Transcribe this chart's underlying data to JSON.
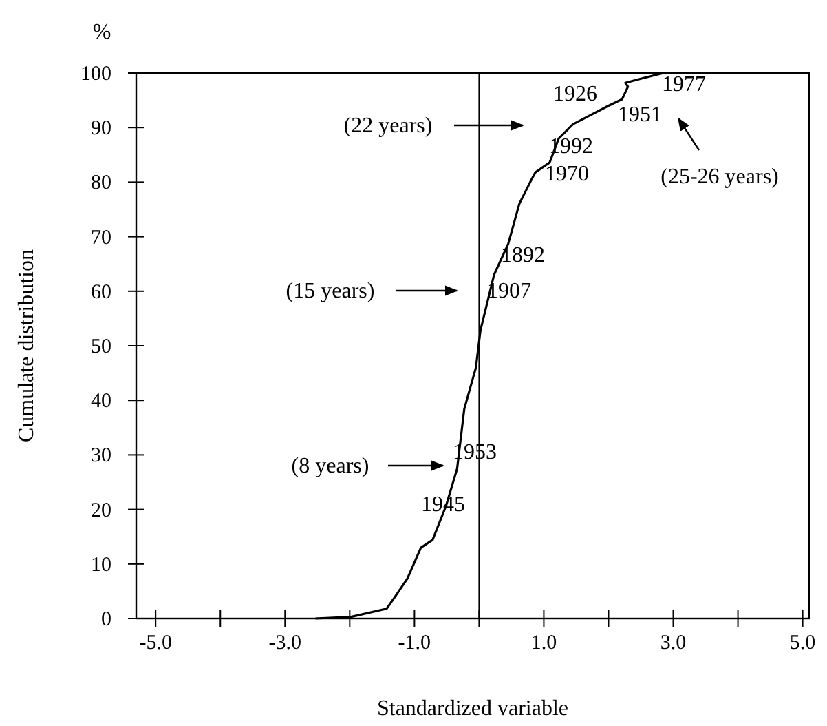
{
  "chart_data": {
    "type": "line",
    "xlabel": "Standardized variable",
    "ylabel": "Cumulate distribution",
    "xlim": [
      -5.3,
      5.1
    ],
    "xticks": [
      {
        "value": -5,
        "label": "-5.0"
      },
      {
        "value": -4,
        "label": null
      },
      {
        "value": -3,
        "label": "-3.0"
      },
      {
        "value": -2,
        "label": null
      },
      {
        "value": -1,
        "label": "-1.0"
      },
      {
        "value": 0,
        "label": null
      },
      {
        "value": 1,
        "label": "1.0"
      },
      {
        "value": 2,
        "label": null
      },
      {
        "value": 3,
        "label": "3.0"
      },
      {
        "value": 4,
        "label": null
      },
      {
        "value": 5,
        "label": "5.0"
      }
    ],
    "ylim": [
      0,
      100
    ],
    "yticks": [
      0,
      10,
      20,
      30,
      40,
      50,
      60,
      70,
      80,
      90,
      100
    ],
    "grid": false,
    "marker": "none",
    "line_style": "solid",
    "ref_lines": [
      {
        "axis": "x",
        "value": 0,
        "color": "#000000"
      }
    ],
    "series": [
      {
        "color": "#000000",
        "x": [
          -2.53,
          -1.98,
          -1.43,
          -1.3,
          -1.11,
          -0.9,
          -0.72,
          -0.51,
          -0.34,
          -0.23,
          -0.05,
          0.02,
          0.23,
          0.45,
          0.62,
          0.81,
          0.87,
          1.09,
          1.23,
          1.45,
          1.66,
          2.0,
          2.21,
          2.3,
          2.26,
          2.51,
          2.85
        ],
        "values": [
          0,
          0.3,
          1.8,
          4,
          7.3,
          13,
          14.4,
          20.7,
          27.5,
          38.4,
          46,
          52.8,
          63,
          68.7,
          76,
          80.5,
          81.8,
          83.6,
          88,
          90.6,
          91.9,
          94,
          95.2,
          97.5,
          98.2,
          99,
          100
        ]
      }
    ],
    "annotations": [
      "%",
      "1926",
      "1977",
      "1951",
      "(25-26 years)",
      "(22 years)",
      "1992",
      "1970",
      "1892",
      "(15 years)",
      "1907",
      "1953",
      "(8 years)",
      "1945"
    ]
  }
}
